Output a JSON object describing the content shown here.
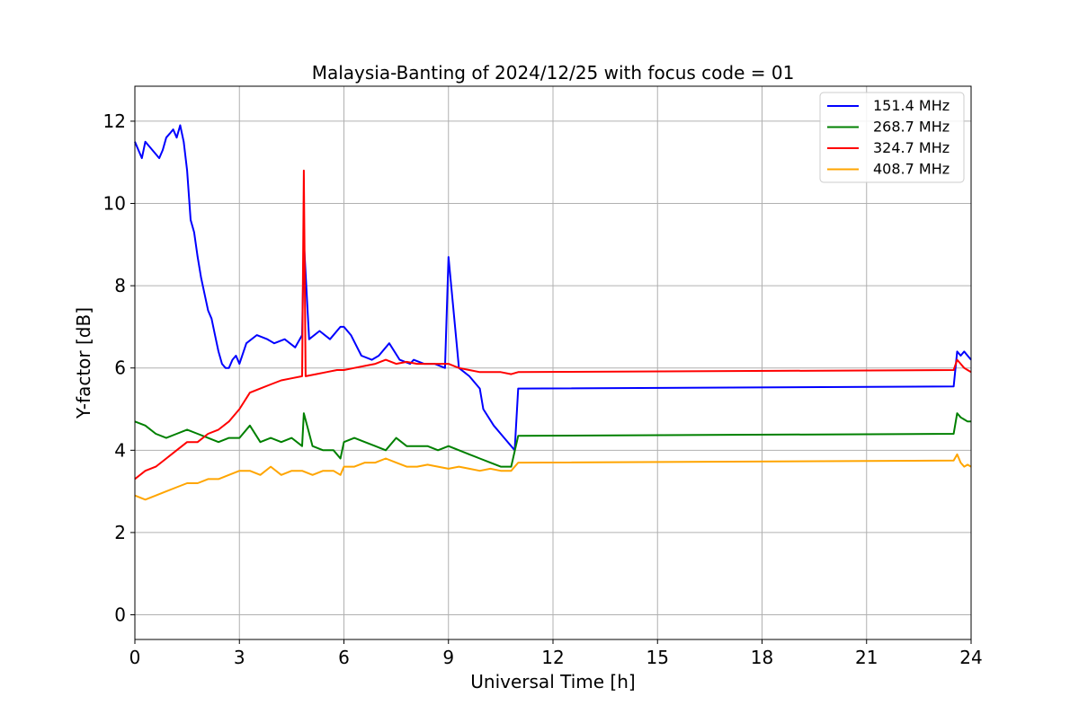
{
  "chart_data": {
    "type": "line",
    "title": "Malaysia-Banting of 2024/12/25 with focus code = 01",
    "xlabel": "Universal Time [h]",
    "ylabel": "Y-factor [dB]",
    "xlim": [
      0,
      24
    ],
    "ylim": [
      -0.6,
      12.85
    ],
    "xticks": [
      0,
      3,
      6,
      9,
      12,
      15,
      18,
      21,
      24
    ],
    "yticks": [
      0,
      2,
      4,
      6,
      8,
      10,
      12
    ],
    "grid": true,
    "legend_position": "upper right",
    "series": [
      {
        "name": "151.4 MHz",
        "color": "#0000ff",
        "x": [
          0,
          0.1,
          0.2,
          0.3,
          0.4,
          0.5,
          0.6,
          0.7,
          0.8,
          0.9,
          1.0,
          1.1,
          1.2,
          1.3,
          1.4,
          1.5,
          1.6,
          1.7,
          1.8,
          1.9,
          2.0,
          2.1,
          2.2,
          2.3,
          2.4,
          2.5,
          2.6,
          2.7,
          2.8,
          2.9,
          3.0,
          3.2,
          3.5,
          3.8,
          4.0,
          4.3,
          4.6,
          4.8,
          4.85,
          5.0,
          5.3,
          5.6,
          5.9,
          6.0,
          6.2,
          6.5,
          6.8,
          7.0,
          7.3,
          7.6,
          7.9,
          8.0,
          8.3,
          8.6,
          8.9,
          9.0,
          9.3,
          9.6,
          9.9,
          10.0,
          10.3,
          10.6,
          10.9,
          11.0,
          23.5,
          23.6,
          23.7,
          23.8,
          23.9,
          24.0
        ],
        "y": [
          11.5,
          11.3,
          11.1,
          11.5,
          11.4,
          11.3,
          11.2,
          11.1,
          11.3,
          11.6,
          11.7,
          11.8,
          11.6,
          11.9,
          11.5,
          10.8,
          9.6,
          9.3,
          8.7,
          8.2,
          7.8,
          7.4,
          7.2,
          6.8,
          6.4,
          6.1,
          6.0,
          6.0,
          6.2,
          6.3,
          6.1,
          6.6,
          6.8,
          6.7,
          6.6,
          6.7,
          6.5,
          6.8,
          9.1,
          6.7,
          6.9,
          6.7,
          7.0,
          7.0,
          6.8,
          6.3,
          6.2,
          6.3,
          6.6,
          6.2,
          6.1,
          6.2,
          6.1,
          6.1,
          6.0,
          8.7,
          6.0,
          5.8,
          5.5,
          5.0,
          4.6,
          4.3,
          4.0,
          5.5,
          5.55,
          6.4,
          6.3,
          6.4,
          6.3,
          6.2
        ]
      },
      {
        "name": "268.7 MHz",
        "color": "#008000",
        "x": [
          0,
          0.3,
          0.6,
          0.9,
          1.2,
          1.5,
          1.8,
          2.1,
          2.4,
          2.7,
          3.0,
          3.3,
          3.6,
          3.9,
          4.2,
          4.5,
          4.8,
          4.85,
          5.1,
          5.4,
          5.7,
          5.9,
          6.0,
          6.3,
          6.6,
          6.9,
          7.2,
          7.5,
          7.8,
          8.1,
          8.4,
          8.7,
          9.0,
          9.3,
          9.6,
          9.9,
          10.2,
          10.5,
          10.8,
          11.0,
          23.5,
          23.6,
          23.7,
          23.8,
          23.9,
          24.0
        ],
        "y": [
          4.7,
          4.6,
          4.4,
          4.3,
          4.4,
          4.5,
          4.4,
          4.3,
          4.2,
          4.3,
          4.3,
          4.6,
          4.2,
          4.3,
          4.2,
          4.3,
          4.1,
          4.9,
          4.1,
          4.0,
          4.0,
          3.8,
          4.2,
          4.3,
          4.2,
          4.1,
          4.0,
          4.3,
          4.1,
          4.1,
          4.1,
          4.0,
          4.1,
          4.0,
          3.9,
          3.8,
          3.7,
          3.6,
          3.6,
          4.35,
          4.4,
          4.9,
          4.8,
          4.75,
          4.7,
          4.7
        ]
      },
      {
        "name": "324.7 MHz",
        "color": "#ff0000",
        "x": [
          0,
          0.3,
          0.6,
          0.9,
          1.2,
          1.5,
          1.8,
          2.1,
          2.4,
          2.7,
          3.0,
          3.3,
          3.6,
          3.9,
          4.2,
          4.5,
          4.8,
          4.85,
          4.9,
          5.2,
          5.5,
          5.8,
          6.0,
          6.3,
          6.6,
          6.9,
          7.2,
          7.5,
          7.8,
          8.1,
          8.4,
          8.7,
          9.0,
          9.3,
          9.6,
          9.9,
          10.2,
          10.5,
          10.8,
          11.0,
          23.5,
          23.6,
          23.7,
          23.8,
          23.9,
          24.0
        ],
        "y": [
          3.3,
          3.5,
          3.6,
          3.8,
          4.0,
          4.2,
          4.2,
          4.4,
          4.5,
          4.7,
          5.0,
          5.4,
          5.5,
          5.6,
          5.7,
          5.75,
          5.8,
          10.8,
          5.8,
          5.85,
          5.9,
          5.95,
          5.95,
          6.0,
          6.05,
          6.1,
          6.2,
          6.1,
          6.15,
          6.1,
          6.1,
          6.1,
          6.1,
          6.0,
          5.95,
          5.9,
          5.9,
          5.9,
          5.85,
          5.9,
          5.95,
          6.2,
          6.1,
          6.0,
          5.95,
          5.9
        ]
      },
      {
        "name": "408.7 MHz",
        "color": "#ffa500",
        "x": [
          0,
          0.3,
          0.6,
          0.9,
          1.2,
          1.5,
          1.8,
          2.1,
          2.4,
          2.7,
          3.0,
          3.3,
          3.6,
          3.9,
          4.2,
          4.5,
          4.8,
          5.1,
          5.4,
          5.7,
          5.9,
          6.0,
          6.3,
          6.6,
          6.9,
          7.2,
          7.5,
          7.8,
          8.1,
          8.4,
          8.7,
          9.0,
          9.3,
          9.6,
          9.9,
          10.2,
          10.5,
          10.8,
          11.0,
          23.5,
          23.6,
          23.7,
          23.8,
          23.9,
          24.0
        ],
        "y": [
          2.9,
          2.8,
          2.9,
          3.0,
          3.1,
          3.2,
          3.2,
          3.3,
          3.3,
          3.4,
          3.5,
          3.5,
          3.4,
          3.6,
          3.4,
          3.5,
          3.5,
          3.4,
          3.5,
          3.5,
          3.4,
          3.6,
          3.6,
          3.7,
          3.7,
          3.8,
          3.7,
          3.6,
          3.6,
          3.65,
          3.6,
          3.55,
          3.6,
          3.55,
          3.5,
          3.55,
          3.5,
          3.5,
          3.7,
          3.75,
          3.9,
          3.7,
          3.6,
          3.65,
          3.6
        ]
      }
    ]
  }
}
